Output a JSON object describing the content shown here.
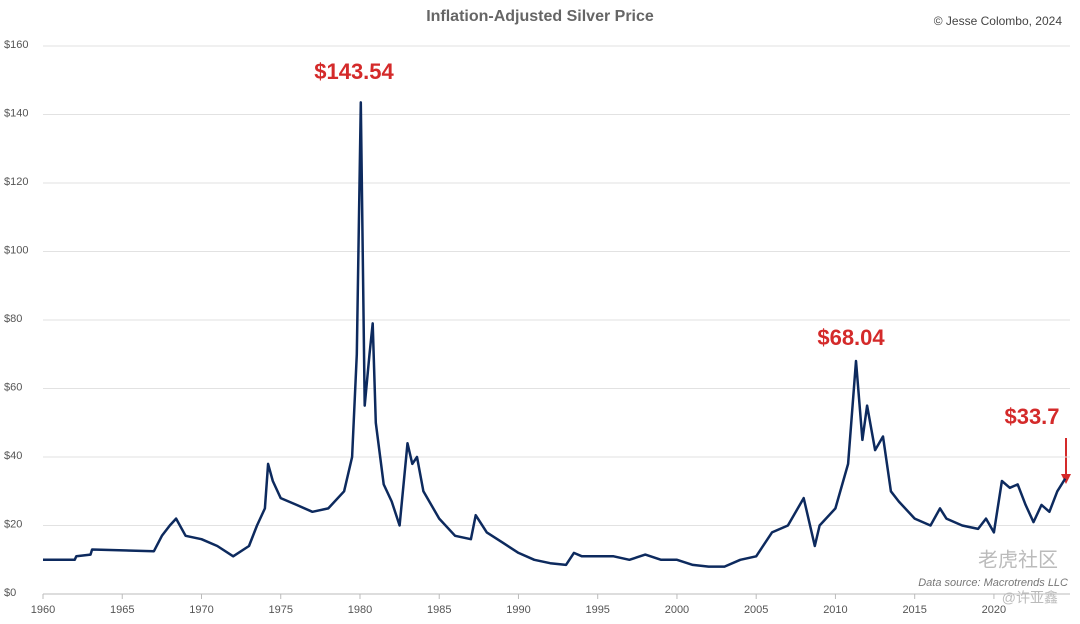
{
  "chart_data": {
    "type": "line",
    "title": "Inflation-Adjusted Silver Price",
    "credit": "© Jesse Colombo, 2024",
    "source": "Data source: Macrotrends LLC",
    "watermark": [
      "老虎社区",
      "@许亚鑫"
    ],
    "annotations": [
      "$143.54",
      "$68.04",
      "$33.7"
    ],
    "x": [
      1960,
      1962,
      1962.1,
      1963,
      1963.1,
      1967,
      1967.5,
      1968,
      1968.4,
      1969,
      1970,
      1971,
      1972,
      1973,
      1973.5,
      1974,
      1974.2,
      1974.5,
      1975,
      1976,
      1977,
      1978,
      1979,
      1979.5,
      1979.8,
      1980.05,
      1980.3,
      1980.6,
      1980.8,
      1981,
      1981.5,
      1982,
      1982.5,
      1983,
      1983.3,
      1983.6,
      1984,
      1985,
      1986,
      1987,
      1987.3,
      1988,
      1989,
      1990,
      1991,
      1992,
      1993,
      1993.5,
      1994,
      1995,
      1996,
      1997,
      1998,
      1999,
      2000,
      2001,
      2002,
      2003,
      2004,
      2005,
      2006,
      2007,
      2008,
      2008.7,
      2009,
      2010,
      2010.8,
      2011.3,
      2011.7,
      2012,
      2012.5,
      2013,
      2013.5,
      2014,
      2015,
      2016,
      2016.6,
      2017,
      2018,
      2019,
      2019.5,
      2020,
      2020.5,
      2021,
      2021.5,
      2022,
      2022.5,
      2023,
      2023.5,
      2024,
      2024.5
    ],
    "series": [
      {
        "name": "Silver price",
        "color": "#0d2a5e",
        "values": [
          10,
          10,
          11,
          11.5,
          13,
          12.5,
          17,
          20,
          22,
          17,
          16,
          14,
          11,
          14,
          20,
          25,
          38,
          33,
          28,
          26,
          24,
          25,
          30,
          40,
          70,
          143.54,
          55,
          70,
          79,
          50,
          32,
          27,
          20,
          44,
          38,
          40,
          30,
          22,
          17,
          16,
          23,
          18,
          15,
          12,
          10,
          9,
          8.5,
          12,
          11,
          11,
          11,
          10,
          11.5,
          10,
          10,
          8.5,
          8,
          8,
          10,
          11,
          18,
          20,
          28,
          14,
          20,
          25,
          38,
          68.04,
          45,
          55,
          42,
          46,
          30,
          27,
          22,
          20,
          25,
          22,
          20,
          19,
          22,
          18,
          33,
          31,
          32,
          26,
          21,
          26,
          24,
          30,
          33.7
        ]
      }
    ],
    "xlim": [
      1960,
      2024.8
    ],
    "xticks": [
      1960,
      1965,
      1970,
      1975,
      1980,
      1985,
      1990,
      1995,
      2000,
      2005,
      2010,
      2015,
      2020
    ],
    "ylim": [
      0,
      160
    ],
    "yticks": [
      {
        "value": 0,
        "label": "$0"
      },
      {
        "value": 20,
        "label": "$20"
      },
      {
        "value": 40,
        "label": "$40"
      },
      {
        "value": 60,
        "label": "$60"
      },
      {
        "value": 80,
        "label": "$80"
      },
      {
        "value": 100,
        "label": "$100"
      },
      {
        "value": 120,
        "label": "$120"
      },
      {
        "value": 140,
        "label": "$140"
      },
      {
        "value": 160,
        "label": "$160"
      }
    ],
    "grid": true
  }
}
